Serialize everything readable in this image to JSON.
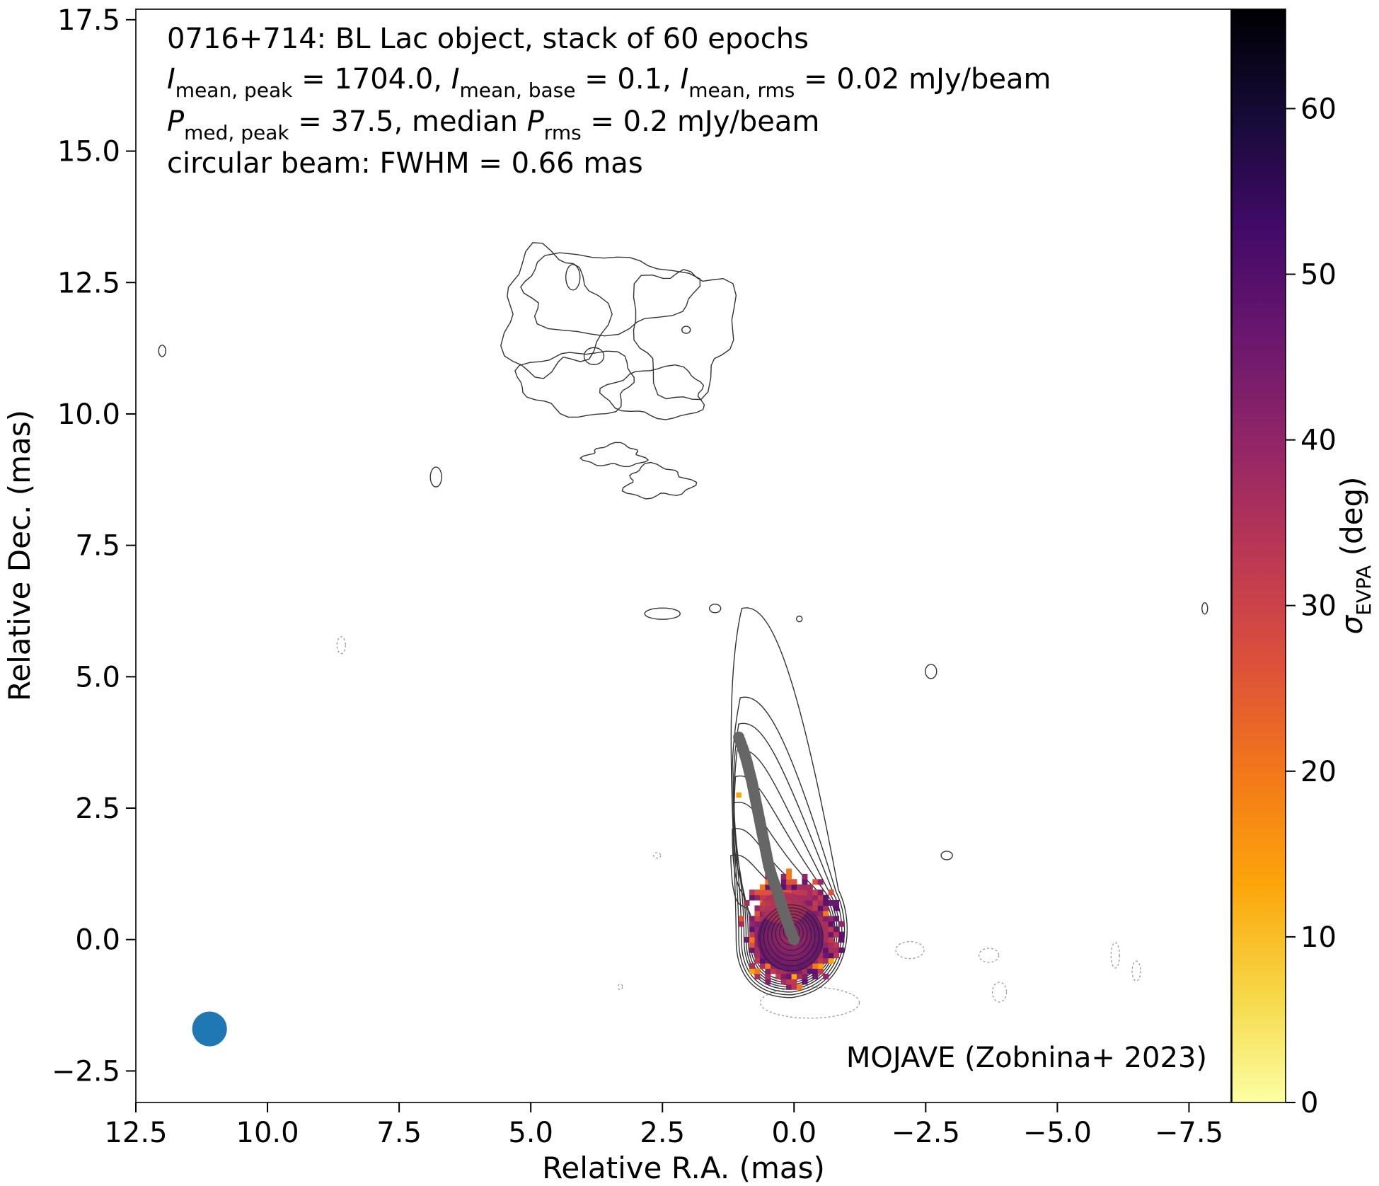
{
  "chart_data": {
    "type": "heatmap",
    "source": "0716+714",
    "annotations": {
      "line1": "0716+714: BL Lac object, stack of 60 epochs",
      "line2": {
        "i_peak_sym": "I",
        "i_peak_sub": "mean, peak",
        "i_peak_val": " = 1704.0, ",
        "i_base_sym": "I",
        "i_base_sub": "mean, base",
        "i_base_val": " = 0.1, ",
        "i_rms_sym": "I",
        "i_rms_sub": "mean, rms",
        "i_rms_val": " = 0.02 mJy/beam"
      },
      "line3": {
        "p_peak_sym": "P",
        "p_peak_sub": "med, peak",
        "p_peak_val": " = 37.5, median ",
        "p_rms_sym": "P",
        "p_rms_sub": "rms",
        "p_rms_val": " = 0.2 mJy/beam"
      },
      "line4": "circular beam: FWHM = 0.66 mas",
      "credit": "MOJAVE (Zobnina+ 2023)"
    },
    "xlabel": "Relative R.A. (mas)",
    "ylabel": "Relative Dec. (mas)",
    "xlim": [
      12.5,
      -8.3
    ],
    "ylim": [
      -3.1,
      17.7
    ],
    "x_ticks": [
      12.5,
      10.0,
      7.5,
      5.0,
      2.5,
      0.0,
      -2.5,
      -5.0,
      -7.5
    ],
    "x_tick_labels": [
      "12.5",
      "10.0",
      "7.5",
      "5.0",
      "2.5",
      "0.0",
      "−2.5",
      "−5.0",
      "−7.5"
    ],
    "y_ticks": [
      -2.5,
      0.0,
      2.5,
      5.0,
      7.5,
      10.0,
      12.5,
      15.0,
      17.5
    ],
    "y_tick_labels": [
      "−2.5",
      "0.0",
      "2.5",
      "5.0",
      "7.5",
      "10.0",
      "12.5",
      "15.0",
      "17.5"
    ],
    "colorbar": {
      "label_sym": "σ",
      "label_sub": "EVPA",
      "label_rest": " (deg)",
      "min": 0,
      "max": 66,
      "ticks": [
        0,
        10,
        20,
        30,
        40,
        50,
        60
      ],
      "tick_labels": [
        "0",
        "10",
        "20",
        "30",
        "40",
        "50",
        "60"
      ],
      "colormap": "inferno_r"
    },
    "beam": {
      "fwhm_mas": 0.66,
      "x": 11.1,
      "y": -1.7,
      "color": "#1f77b4"
    },
    "jet_ridge": [
      [
        0.0,
        0.0
      ],
      [
        0.08,
        0.2
      ],
      [
        0.15,
        0.4
      ],
      [
        0.22,
        0.6
      ],
      [
        0.28,
        0.8
      ],
      [
        0.35,
        1.0
      ],
      [
        0.42,
        1.2
      ],
      [
        0.48,
        1.4
      ],
      [
        0.52,
        1.6
      ],
      [
        0.56,
        1.8
      ],
      [
        0.6,
        2.0
      ],
      [
        0.64,
        2.2
      ],
      [
        0.68,
        2.4
      ],
      [
        0.72,
        2.6
      ],
      [
        0.76,
        2.8
      ],
      [
        0.8,
        3.0
      ],
      [
        0.85,
        3.2
      ],
      [
        0.9,
        3.4
      ],
      [
        0.96,
        3.6
      ],
      [
        1.05,
        3.85
      ]
    ],
    "ridge_color": "#666666"
  }
}
